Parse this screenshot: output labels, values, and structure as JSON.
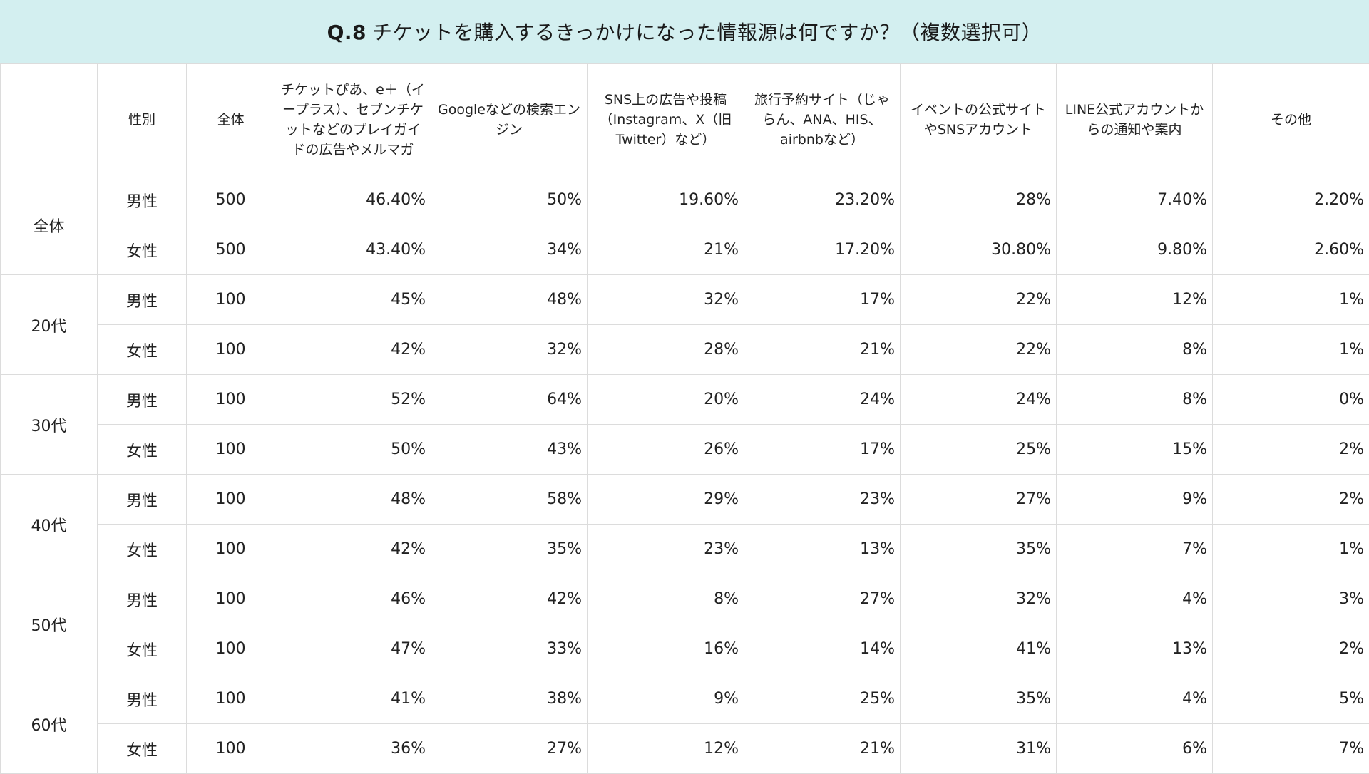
{
  "title": {
    "qnum": "Q.8",
    "text": "チケットを購入するきっかけになった情報源は何ですか？（複数選択可）"
  },
  "table": {
    "headers": {
      "age": "",
      "gender": "性別",
      "total": "全体",
      "options": [
        "チケットぴあ、e＋（イープラス）、セブンチケットなどのプレイガイドの広告やメルマガ",
        "Googleなどの検索エンジン",
        "SNS上の広告や投稿（Instagram、X（旧Twitter）など）",
        "旅行予約サイト（じゃらん、ANA、HIS、airbnbなど）",
        "イベントの公式サイトやSNSアカウント",
        "LINE公式アカウントからの通知や案内",
        "その他"
      ]
    },
    "groups": [
      {
        "age": "全体",
        "rows": [
          {
            "gender": "男性",
            "n": "500",
            "values": [
              "46.40%",
              "50%",
              "19.60%",
              "23.20%",
              "28%",
              "7.40%",
              "2.20%"
            ]
          },
          {
            "gender": "女性",
            "n": "500",
            "values": [
              "43.40%",
              "34%",
              "21%",
              "17.20%",
              "30.80%",
              "9.80%",
              "2.60%"
            ]
          }
        ]
      },
      {
        "age": "20代",
        "rows": [
          {
            "gender": "男性",
            "n": "100",
            "values": [
              "45%",
              "48%",
              "32%",
              "17%",
              "22%",
              "12%",
              "1%"
            ]
          },
          {
            "gender": "女性",
            "n": "100",
            "values": [
              "42%",
              "32%",
              "28%",
              "21%",
              "22%",
              "8%",
              "1%"
            ]
          }
        ]
      },
      {
        "age": "30代",
        "rows": [
          {
            "gender": "男性",
            "n": "100",
            "values": [
              "52%",
              "64%",
              "20%",
              "24%",
              "24%",
              "8%",
              "0%"
            ]
          },
          {
            "gender": "女性",
            "n": "100",
            "values": [
              "50%",
              "43%",
              "26%",
              "17%",
              "25%",
              "15%",
              "2%"
            ]
          }
        ]
      },
      {
        "age": "40代",
        "rows": [
          {
            "gender": "男性",
            "n": "100",
            "values": [
              "48%",
              "58%",
              "29%",
              "23%",
              "27%",
              "9%",
              "2%"
            ]
          },
          {
            "gender": "女性",
            "n": "100",
            "values": [
              "42%",
              "35%",
              "23%",
              "13%",
              "35%",
              "7%",
              "1%"
            ]
          }
        ]
      },
      {
        "age": "50代",
        "rows": [
          {
            "gender": "男性",
            "n": "100",
            "values": [
              "46%",
              "42%",
              "8%",
              "27%",
              "32%",
              "4%",
              "3%"
            ]
          },
          {
            "gender": "女性",
            "n": "100",
            "values": [
              "47%",
              "33%",
              "16%",
              "14%",
              "41%",
              "13%",
              "2%"
            ]
          }
        ]
      },
      {
        "age": "60代",
        "rows": [
          {
            "gender": "男性",
            "n": "100",
            "values": [
              "41%",
              "38%",
              "9%",
              "25%",
              "35%",
              "4%",
              "5%"
            ]
          },
          {
            "gender": "女性",
            "n": "100",
            "values": [
              "36%",
              "27%",
              "12%",
              "21%",
              "31%",
              "6%",
              "7%"
            ]
          }
        ]
      }
    ]
  }
}
